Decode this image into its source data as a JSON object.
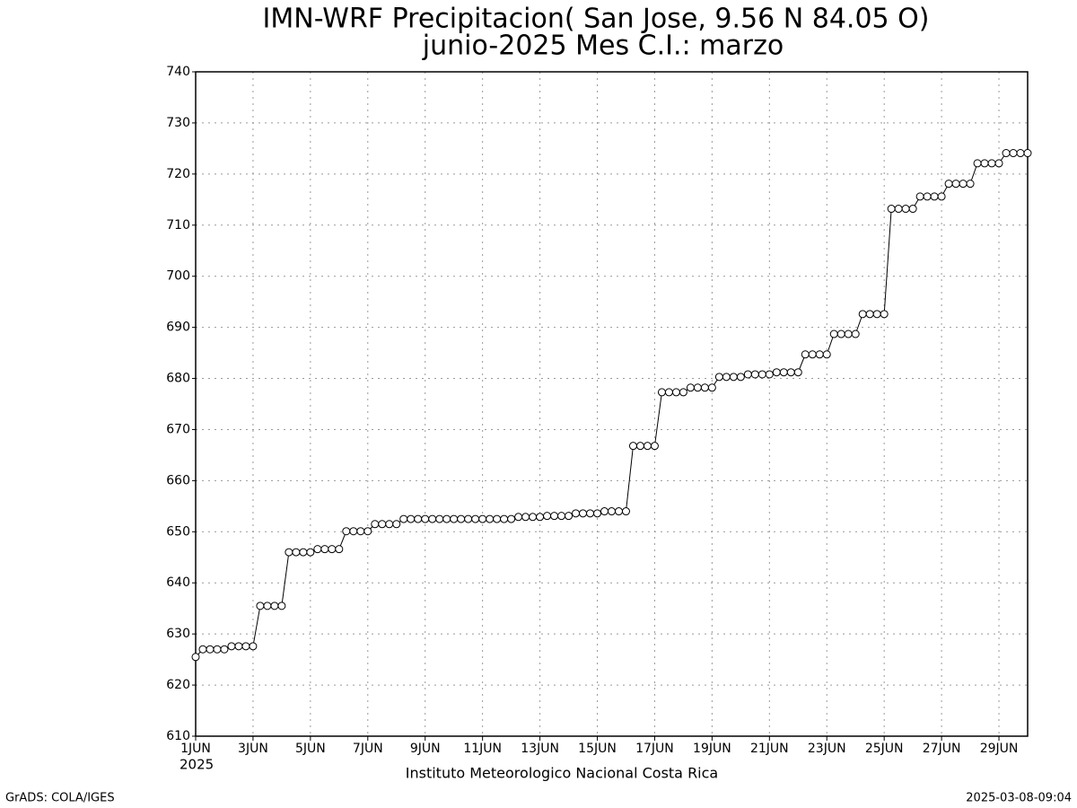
{
  "chart_data": {
    "type": "line",
    "title": "IMN-WRF  Precipitacion( San Jose, 9.56  N 84.05  O)",
    "subtitle": "junio-2025 Mes C.I.: marzo",
    "x_year_label": "2025",
    "footer": "Instituto Meteorologico Nacional Costa Rica",
    "credit": "GrADS: COLA/IGES",
    "timestamp": "2025-03-08-09:04",
    "categories": [
      "1JUN",
      null,
      null,
      null,
      null,
      null,
      null,
      null,
      "3JUN",
      null,
      null,
      null,
      null,
      null,
      null,
      null,
      "5JUN",
      null,
      null,
      null,
      null,
      null,
      null,
      null,
      "7JUN",
      null,
      null,
      null,
      null,
      null,
      null,
      null,
      "9JUN",
      null,
      null,
      null,
      null,
      null,
      null,
      null,
      "11JUN",
      null,
      null,
      null,
      null,
      null,
      null,
      null,
      "13JUN",
      null,
      null,
      null,
      null,
      null,
      null,
      null,
      "15JUN",
      null,
      null,
      null,
      null,
      null,
      null,
      null,
      "17JUN",
      null,
      null,
      null,
      null,
      null,
      null,
      null,
      "19JUN",
      null,
      null,
      null,
      null,
      null,
      null,
      null,
      "21JUN",
      null,
      null,
      null,
      null,
      null,
      null,
      null,
      "23JUN",
      null,
      null,
      null,
      null,
      null,
      null,
      null,
      "25JUN",
      null,
      null,
      null,
      null,
      null,
      null,
      null,
      "27JUN",
      null,
      null,
      null,
      null,
      null,
      null,
      null,
      "29JUN",
      null,
      null,
      null,
      null
    ],
    "series": [
      {
        "name": "Precipitacion",
        "color": "#000000",
        "values": [
          625.5,
          627,
          627,
          627,
          627,
          627.6,
          627.6,
          627.6,
          627.6,
          635.5,
          635.5,
          635.5,
          635.5,
          646,
          646,
          646,
          646,
          646.6,
          646.6,
          646.6,
          646.6,
          650.1,
          650.1,
          650.1,
          650.1,
          651.5,
          651.5,
          651.5,
          651.5,
          652.5,
          652.5,
          652.5,
          652.5,
          652.5,
          652.5,
          652.5,
          652.5,
          652.5,
          652.5,
          652.5,
          652.5,
          652.5,
          652.5,
          652.5,
          652.5,
          652.9,
          652.9,
          652.9,
          652.9,
          653.1,
          653.1,
          653.1,
          653.1,
          653.6,
          653.6,
          653.6,
          653.6,
          654,
          654,
          654,
          654,
          666.8,
          666.8,
          666.8,
          666.8,
          677.3,
          677.3,
          677.3,
          677.3,
          678.2,
          678.2,
          678.2,
          678.2,
          680.3,
          680.3,
          680.3,
          680.3,
          680.8,
          680.8,
          680.8,
          680.8,
          681.2,
          681.2,
          681.2,
          681.2,
          684.7,
          684.7,
          684.7,
          684.7,
          688.7,
          688.7,
          688.7,
          688.7,
          692.6,
          692.6,
          692.6,
          692.6,
          713.2,
          713.2,
          713.2,
          713.2,
          715.6,
          715.6,
          715.6,
          715.6,
          718.1,
          718.1,
          718.1,
          718.1,
          722.1,
          722.1,
          722.1,
          722.1,
          724.1,
          724.1,
          724.1,
          724.1
        ]
      }
    ],
    "ylim": [
      610,
      740
    ],
    "yticks": [
      610,
      620,
      630,
      640,
      650,
      660,
      670,
      680,
      690,
      700,
      710,
      720,
      730,
      740
    ],
    "grid": true,
    "markers": "open-circle"
  }
}
